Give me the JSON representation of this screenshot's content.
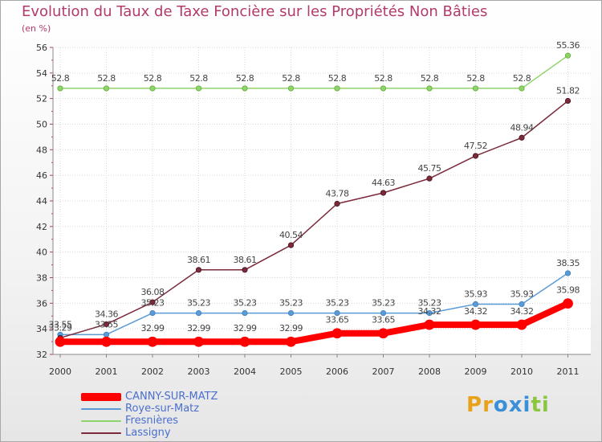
{
  "chart_data": {
    "type": "line",
    "title": "Evolution du Taux de Taxe Foncière sur les Propriétés Non Bâties",
    "ylabel": "(en %)",
    "xlabel": "",
    "x": [
      "2000",
      "2001",
      "2002",
      "2003",
      "2004",
      "2005",
      "2006",
      "2007",
      "2008",
      "2009",
      "2010",
      "2011"
    ],
    "ylim": [
      32,
      56
    ],
    "yticks": [
      32,
      34,
      36,
      38,
      40,
      42,
      44,
      46,
      48,
      50,
      52,
      54,
      56
    ],
    "yticks_labels": [
      "32",
      "34",
      "36",
      "38",
      "40",
      "42",
      "44",
      "46",
      "48",
      "50",
      "52",
      "54",
      "56"
    ],
    "grid": true,
    "series": [
      {
        "name": "CANNY-SUR-MATZ",
        "color": "#ff0000",
        "values": [
          32.99,
          32.99,
          32.99,
          32.99,
          32.99,
          32.99,
          33.65,
          33.65,
          34.32,
          34.32,
          34.32,
          35.98
        ],
        "labels": [
          "",
          "",
          "32.99",
          "32.99",
          "32.99",
          "32.99",
          "33.65",
          "33.65",
          "34.32",
          "34.32",
          "34.32",
          "35.98"
        ]
      },
      {
        "name": "Roye-sur-Matz",
        "color": "#5b9bd5",
        "values": [
          33.55,
          33.55,
          35.23,
          35.23,
          35.23,
          35.23,
          35.23,
          35.23,
          35.23,
          35.93,
          35.93,
          38.35
        ],
        "labels": [
          "33.55",
          "33.55",
          "35.23",
          "35.23",
          "35.23",
          "35.23",
          "35.23",
          "35.23",
          "35.23",
          "35.93",
          "35.93",
          "38.35"
        ]
      },
      {
        "name": "Fresnières",
        "color": "#8fd46a",
        "values": [
          52.8,
          52.8,
          52.8,
          52.8,
          52.8,
          52.8,
          52.8,
          52.8,
          52.8,
          52.8,
          52.8,
          55.36
        ],
        "labels": [
          "52.8",
          "52.8",
          "52.8",
          "52.8",
          "52.8",
          "52.8",
          "52.8",
          "52.8",
          "52.8",
          "52.8",
          "52.8",
          "55.36"
        ]
      },
      {
        "name": "Lassigny",
        "color": "#7a2a3a",
        "values": [
          33.29,
          34.36,
          36.08,
          38.61,
          38.61,
          40.54,
          43.78,
          44.63,
          45.75,
          47.52,
          48.94,
          51.82
        ],
        "labels": [
          "33.29",
          "34.36",
          "36.08",
          "38.61",
          "38.61",
          "40.54",
          "43.78",
          "44.63",
          "45.75",
          "47.52",
          "48.94",
          "51.82"
        ]
      }
    ]
  },
  "legend": {
    "items": [
      {
        "label": "CANNY-SUR-MATZ",
        "color": "#ff0000"
      },
      {
        "label": "Roye-sur-Matz",
        "color": "#5b9bd5"
      },
      {
        "label": "Fresnières",
        "color": "#8fd46a"
      },
      {
        "label": "Lassigny",
        "color": "#7a2a3a"
      }
    ]
  },
  "logo": {
    "text": "Proxiti",
    "letters": [
      "P",
      "r",
      "o",
      "x",
      "i",
      "t",
      "i"
    ],
    "colors": [
      "#e8a21a",
      "#e8a21a",
      "#3a8fd8",
      "#3a8fd8",
      "#3a8fd8",
      "#8cc63f",
      "#8cc63f"
    ]
  }
}
